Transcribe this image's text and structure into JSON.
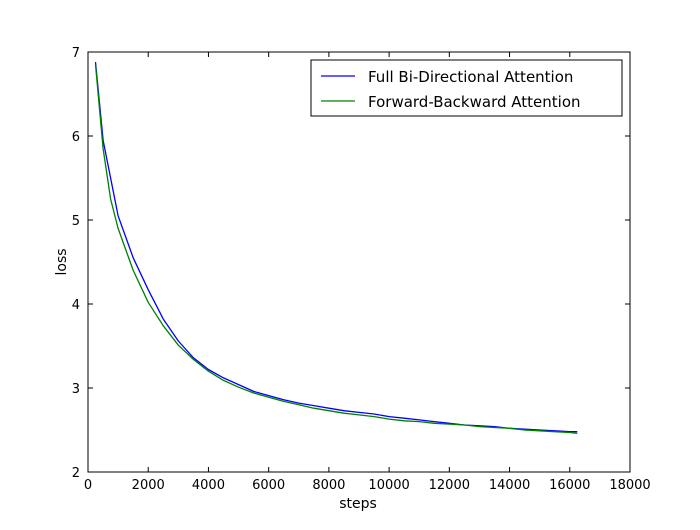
{
  "chart_data": {
    "type": "line",
    "title": "",
    "xlabel": "steps",
    "ylabel": "loss",
    "xlim": [
      0,
      18000
    ],
    "ylim": [
      2,
      7
    ],
    "xticks": [
      0,
      2000,
      4000,
      6000,
      8000,
      10000,
      12000,
      14000,
      16000,
      18000
    ],
    "yticks": [
      2,
      3,
      4,
      5,
      6,
      7
    ],
    "xtick_labels": [
      "0",
      "2000",
      "4000",
      "6000",
      "8000",
      "10000",
      "12000",
      "14000",
      "16000",
      "18000"
    ],
    "ytick_labels": [
      "2",
      "3",
      "4",
      "5",
      "6",
      "7"
    ],
    "grid": false,
    "legend": "top-right",
    "series": [
      {
        "name": "Full Bi-Directional Attention",
        "color": "#0000ff",
        "x": [
          250,
          500,
          750,
          1000,
          1500,
          2000,
          2500,
          3000,
          3500,
          4000,
          4500,
          5000,
          5500,
          6000,
          6500,
          7000,
          7500,
          8000,
          8500,
          9000,
          9500,
          10000,
          10500,
          11000,
          11500,
          12000,
          12500,
          13000,
          13500,
          14000,
          14500,
          15000,
          15500,
          16000,
          16250
        ],
        "y": [
          6.88,
          5.95,
          5.5,
          5.05,
          4.55,
          4.17,
          3.82,
          3.56,
          3.36,
          3.22,
          3.12,
          3.04,
          2.96,
          2.91,
          2.86,
          2.82,
          2.79,
          2.76,
          2.73,
          2.71,
          2.69,
          2.66,
          2.64,
          2.62,
          2.6,
          2.58,
          2.56,
          2.55,
          2.54,
          2.52,
          2.51,
          2.5,
          2.49,
          2.48,
          2.48
        ]
      },
      {
        "name": "Forward-Backward Attention",
        "color": "#008000",
        "x": [
          250,
          500,
          750,
          1000,
          1500,
          2000,
          2500,
          3000,
          3500,
          4000,
          4500,
          5000,
          5500,
          6000,
          6500,
          7000,
          7500,
          8000,
          8500,
          9000,
          9500,
          10000,
          10500,
          11000,
          11500,
          12000,
          12500,
          13000,
          13500,
          14000,
          14500,
          15000,
          15500,
          16000,
          16250
        ],
        "y": [
          6.85,
          5.85,
          5.25,
          4.9,
          4.4,
          4.02,
          3.74,
          3.51,
          3.34,
          3.2,
          3.09,
          3.01,
          2.94,
          2.89,
          2.84,
          2.8,
          2.76,
          2.73,
          2.7,
          2.68,
          2.66,
          2.63,
          2.61,
          2.6,
          2.58,
          2.57,
          2.56,
          2.54,
          2.53,
          2.52,
          2.5,
          2.49,
          2.48,
          2.47,
          2.46
        ]
      }
    ]
  }
}
